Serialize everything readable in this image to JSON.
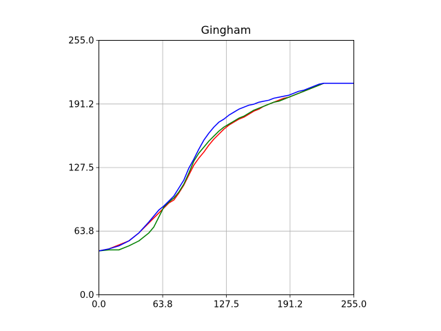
{
  "chart_data": {
    "type": "line",
    "title": "Gingham",
    "xlabel": "",
    "ylabel": "",
    "xlim": [
      0,
      255
    ],
    "ylim": [
      0,
      255
    ],
    "xticks": [
      0,
      63.8,
      127.5,
      191.2,
      255
    ],
    "yticks": [
      0,
      63.8,
      127.5,
      191.2,
      255
    ],
    "xtick_labels": [
      "0.0",
      "63.8",
      "127.5",
      "191.2",
      "255.0"
    ],
    "ytick_labels": [
      "0.0",
      "63.8",
      "127.5",
      "191.2",
      "255.0"
    ],
    "grid": true,
    "legend": "none",
    "series": [
      {
        "color": "#ff0000",
        "points": [
          [
            0,
            44
          ],
          [
            10,
            46
          ],
          [
            20,
            50
          ],
          [
            30,
            54
          ],
          [
            40,
            62
          ],
          [
            50,
            72
          ],
          [
            60,
            82
          ],
          [
            65,
            87
          ],
          [
            70,
            92
          ],
          [
            75,
            95
          ],
          [
            80,
            102
          ],
          [
            85,
            110
          ],
          [
            90,
            120
          ],
          [
            95,
            130
          ],
          [
            100,
            137
          ],
          [
            105,
            143
          ],
          [
            110,
            150
          ],
          [
            115,
            156
          ],
          [
            120,
            161
          ],
          [
            125,
            166
          ],
          [
            130,
            170
          ],
          [
            135,
            173
          ],
          [
            140,
            176
          ],
          [
            145,
            178
          ],
          [
            150,
            181
          ],
          [
            155,
            184
          ],
          [
            160,
            186
          ],
          [
            165,
            189
          ],
          [
            170,
            191
          ],
          [
            175,
            193
          ],
          [
            180,
            195
          ],
          [
            185,
            197
          ],
          [
            190,
            198
          ],
          [
            195,
            200
          ],
          [
            200,
            202
          ],
          [
            205,
            204
          ],
          [
            210,
            206
          ],
          [
            215,
            208
          ],
          [
            220,
            210
          ],
          [
            225,
            212
          ],
          [
            230,
            212
          ],
          [
            240,
            212
          ],
          [
            255,
            212
          ]
        ]
      },
      {
        "color": "#008000",
        "points": [
          [
            0,
            44
          ],
          [
            10,
            45
          ],
          [
            20,
            45
          ],
          [
            30,
            49
          ],
          [
            40,
            54
          ],
          [
            50,
            62
          ],
          [
            55,
            68
          ],
          [
            60,
            78
          ],
          [
            65,
            88
          ],
          [
            70,
            93
          ],
          [
            75,
            97
          ],
          [
            80,
            103
          ],
          [
            85,
            111
          ],
          [
            90,
            122
          ],
          [
            95,
            134
          ],
          [
            100,
            142
          ],
          [
            105,
            148
          ],
          [
            110,
            154
          ],
          [
            115,
            159
          ],
          [
            120,
            164
          ],
          [
            125,
            168
          ],
          [
            130,
            171
          ],
          [
            135,
            174
          ],
          [
            140,
            177
          ],
          [
            145,
            179
          ],
          [
            150,
            182
          ],
          [
            155,
            185
          ],
          [
            160,
            187
          ],
          [
            165,
            189
          ],
          [
            170,
            191
          ],
          [
            175,
            193
          ],
          [
            180,
            194
          ],
          [
            185,
            196
          ],
          [
            190,
            198
          ],
          [
            195,
            200
          ],
          [
            200,
            202
          ],
          [
            205,
            204
          ],
          [
            210,
            206
          ],
          [
            215,
            208
          ],
          [
            220,
            210
          ],
          [
            225,
            212
          ],
          [
            230,
            212
          ],
          [
            240,
            212
          ],
          [
            255,
            212
          ]
        ]
      },
      {
        "color": "#0000ff",
        "points": [
          [
            0,
            44
          ],
          [
            10,
            46
          ],
          [
            20,
            49
          ],
          [
            30,
            54
          ],
          [
            40,
            62
          ],
          [
            50,
            73
          ],
          [
            60,
            85
          ],
          [
            65,
            89
          ],
          [
            70,
            94
          ],
          [
            75,
            99
          ],
          [
            80,
            107
          ],
          [
            85,
            115
          ],
          [
            90,
            127
          ],
          [
            95,
            136
          ],
          [
            100,
            146
          ],
          [
            105,
            155
          ],
          [
            110,
            162
          ],
          [
            115,
            168
          ],
          [
            120,
            173
          ],
          [
            125,
            176
          ],
          [
            130,
            180
          ],
          [
            135,
            183
          ],
          [
            140,
            186
          ],
          [
            145,
            188
          ],
          [
            150,
            190
          ],
          [
            155,
            191
          ],
          [
            160,
            193
          ],
          [
            165,
            194
          ],
          [
            170,
            195
          ],
          [
            175,
            197
          ],
          [
            180,
            198
          ],
          [
            185,
            199
          ],
          [
            190,
            200
          ],
          [
            195,
            202
          ],
          [
            200,
            204
          ],
          [
            205,
            205
          ],
          [
            210,
            207
          ],
          [
            215,
            209
          ],
          [
            220,
            211
          ],
          [
            225,
            212
          ],
          [
            230,
            212
          ],
          [
            240,
            212
          ],
          [
            255,
            212
          ]
        ]
      }
    ]
  }
}
